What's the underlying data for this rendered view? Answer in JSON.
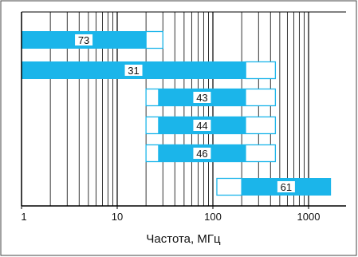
{
  "chart_data": {
    "type": "bar",
    "orientation": "horizontal",
    "xscale": "log",
    "xlim": [
      1,
      1700
    ],
    "xlabel": "Частота, МГц",
    "xticks": [
      {
        "value": 1,
        "label": "1"
      },
      {
        "value": 10,
        "label": "10"
      },
      {
        "value": 100,
        "label": "100"
      },
      {
        "value": 1000,
        "label": "1000"
      }
    ],
    "grid": "vertical-log",
    "colors": {
      "filled": "#1bb5ea",
      "outline": "#1bb5ea",
      "axis": "#000000"
    },
    "bars": [
      {
        "label": "73",
        "solid": [
          1,
          20
        ],
        "extended": [
          20,
          30
        ]
      },
      {
        "label": "31",
        "solid": [
          1,
          220
        ],
        "extended": [
          220,
          450
        ]
      },
      {
        "label": "43",
        "solid": [
          27,
          220
        ],
        "extended": [
          20,
          450
        ]
      },
      {
        "label": "44",
        "solid": [
          27,
          220
        ],
        "extended": [
          20,
          450
        ]
      },
      {
        "label": "46",
        "solid": [
          27,
          220
        ],
        "extended": [
          20,
          450
        ]
      },
      {
        "label": "61",
        "solid": [
          200,
          1700
        ],
        "extended": [
          110,
          200
        ]
      }
    ]
  }
}
